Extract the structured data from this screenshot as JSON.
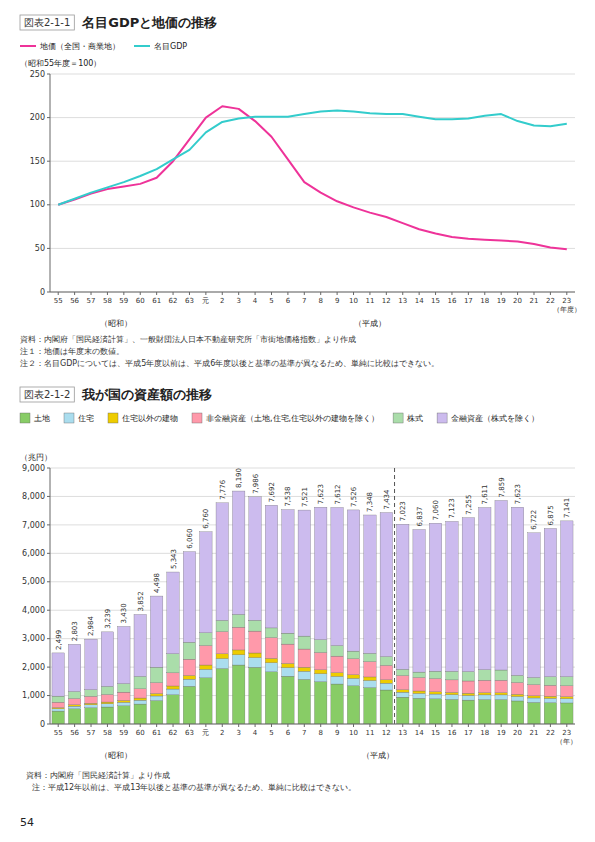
{
  "chart_data": [
    {
      "type": "line",
      "title": "名目GDPと地価の推移",
      "subtitle": "図表2-1-1",
      "ylabel": "（昭和55年度＝100）",
      "annotations": [
        "（昭和）",
        "（平成）",
        "資料：内閣府「国民経済計算」、一般財団法人日本不動産研究所「市街地価格指数」より作成",
        "注１：地価は年度末の数値。",
        "注２：名目GDPについては、平成5年度以前は、平成6年度以後と基準の基準が異なるため、単純に比較はできない。"
      ],
      "categories": [
        "55",
        "56",
        "57",
        "58",
        "59",
        "60",
        "61",
        "62",
        "63",
        "元",
        "2",
        "3",
        "4",
        "5",
        "6",
        "7",
        "8",
        "9",
        "10",
        "11",
        "12",
        "13",
        "14",
        "15",
        "16",
        "17",
        "18",
        "19",
        "20",
        "21",
        "22",
        "23（年度）"
      ],
      "series": [
        {
          "name": "地価（全国・商業地）",
          "color": "#ee3399",
          "values": [
            100,
            106,
            113,
            118,
            121,
            124,
            131,
            150,
            175,
            200,
            213,
            210,
            196,
            178,
            152,
            126,
            114,
            104,
            97,
            91,
            86,
            79,
            72,
            67,
            63,
            61,
            60,
            59,
            58,
            55,
            51,
            49
          ]
        },
        {
          "name": "名目GDP",
          "color": "#33cccc",
          "values": [
            100,
            107,
            114,
            120,
            126,
            133,
            141,
            152,
            163,
            183,
            195,
            199,
            201,
            201,
            201,
            204,
            207,
            208,
            207,
            205,
            204,
            204,
            201,
            198,
            198,
            199,
            202,
            204,
            196,
            191,
            190,
            193
          ]
        }
      ],
      "ylim": [
        0,
        250
      ],
      "yticks": [
        0,
        50,
        100,
        150,
        200,
        250
      ],
      "grid": true,
      "legend": "top"
    },
    {
      "type": "bar",
      "stacked": true,
      "title": "我が国の資産額の推移",
      "subtitle": "図表2-1-2",
      "ylabel": "（兆円）",
      "annotations": [
        "（昭和）",
        "（平成）",
        "資料：内閣府「国民経済計算」より作成",
        "注：平成12年以前は、平成13年以後と基準の基準が異なるため、単純に比較はできない。"
      ],
      "categories": [
        "55",
        "56",
        "57",
        "58",
        "59",
        "60",
        "61",
        "62",
        "63",
        "元",
        "2",
        "3",
        "4",
        "5",
        "6",
        "7",
        "8",
        "9",
        "10",
        "11",
        "12",
        "13",
        "14",
        "15",
        "16",
        "17",
        "18",
        "19",
        "20",
        "21",
        "22",
        "23（年）"
      ],
      "series": [
        {
          "name": "土地",
          "color": "#88cc66",
          "values": [
            454,
            533,
            570,
            597,
            638,
            701,
            824,
            1029,
            1327,
            1623,
            1951,
            2073,
            1994,
            1834,
            1681,
            1570,
            1488,
            1405,
            1345,
            1280,
            1195,
            944,
            905,
            885,
            865,
            840,
            860,
            860,
            810,
            760,
            750,
            740
          ]
        },
        {
          "name": "住宅",
          "color": "#aaddee",
          "values": [
            81,
            94,
            104,
            113,
            124,
            137,
            161,
            200,
            250,
            300,
            350,
            360,
            340,
            320,
            300,
            285,
            280,
            270,
            260,
            250,
            240,
            175,
            170,
            168,
            165,
            163,
            163,
            163,
            158,
            155,
            153,
            150
          ]
        },
        {
          "name": "住宅以外の建物",
          "color": "#eecc00",
          "values": [
            43,
            50,
            56,
            62,
            68,
            75,
            88,
            107,
            130,
            150,
            167,
            170,
            162,
            154,
            148,
            140,
            136,
            131,
            127,
            124,
            120,
            88,
            85,
            83,
            81,
            79,
            80,
            80,
            76,
            74,
            73,
            72
          ]
        },
        {
          "name": "非金融資産（土地,住宅,住宅以外の建物を除く）",
          "color": "#ff99aa",
          "values": [
            188,
            218,
            243,
            265,
            290,
            323,
            380,
            462,
            572,
            685,
            780,
            800,
            770,
            730,
            680,
            640,
            610,
            580,
            560,
            540,
            505,
            495,
            475,
            460,
            440,
            430,
            435,
            435,
            415,
            395,
            385,
            380
          ]
        },
        {
          "name": "株式",
          "color": "#aaddaa",
          "values": [
            214,
            247,
            230,
            286,
            299,
            437,
            543,
            670,
            595,
            447,
            395,
            450,
            380,
            340,
            385,
            455,
            450,
            370,
            270,
            290,
            310,
            220,
            190,
            260,
            300,
            330,
            370,
            360,
            250,
            250,
            300,
            320
          ]
        },
        {
          "name": "金融資産（株式を除く）",
          "color": "#ccbbee",
          "values": [
            1519,
            1661,
            1781,
            1916,
            2011,
            2179,
            2502,
            2875,
            3186,
            3555,
            4133,
            4337,
            4340,
            4314,
            4344,
            4431,
            4659,
            4856,
            4964,
            4864,
            5064,
            5101,
            5012,
            5204,
            5272,
            5413,
            5703,
            5961,
            5914,
            5088,
            5214,
            5479
          ]
        }
      ],
      "totals": [
        2499,
        2803,
        2984,
        3239,
        3430,
        3852,
        4498,
        5343,
        6060,
        6760,
        7776,
        8190,
        7986,
        7692,
        7538,
        7521,
        7623,
        7612,
        7526,
        7348,
        7434,
        7023,
        6837,
        7060,
        7123,
        7255,
        7611,
        7859,
        7623,
        6722,
        6875,
        7141
      ],
      "total_labels": [
        "2,499",
        "2,803",
        "2,984",
        "3,239",
        "3,430",
        "3,852",
        "4,498",
        "5,343",
        "6,060",
        "6,760",
        "7,776",
        "8,190",
        "7,986",
        "7,692",
        "7,538",
        "7,521",
        "7,623",
        "7,612",
        "7,526",
        "7,348",
        "7,434",
        "7,023",
        "6,837",
        "7,060",
        "7,123",
        "7,255",
        "7,611",
        "7,859",
        "7,623",
        "6,722",
        "6,875",
        "7,141"
      ],
      "divider_after": "12",
      "ylim": [
        0,
        9000
      ],
      "yticks": [
        0,
        {
          "value": 1000,
          "label": "1,000"
        },
        {
          "value": 2000,
          "label": "2,000"
        },
        {
          "value": 3000,
          "label": "3,000"
        },
        {
          "value": 4000,
          "label": "4,000"
        },
        {
          "value": 5000,
          "label": "5,000"
        },
        {
          "value": 6000,
          "label": "6,000"
        },
        {
          "value": 7000,
          "label": "7,000"
        },
        {
          "value": 8000,
          "label": "8,000"
        },
        {
          "value": 9000,
          "label": "9,000"
        }
      ],
      "grid": true,
      "legend": "top"
    }
  ],
  "page_number": "54"
}
